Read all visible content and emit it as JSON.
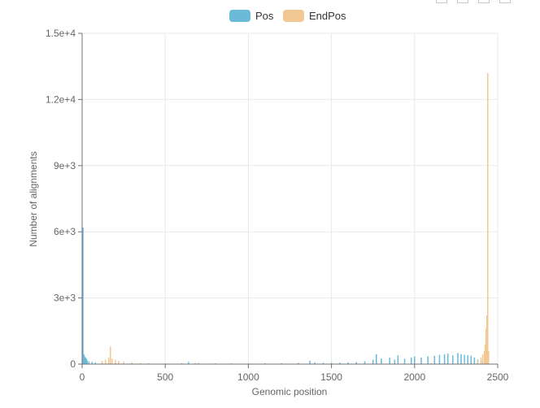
{
  "chart_data": {
    "type": "bar",
    "xlabel": "Genomic position",
    "ylabel": "Number of alignments",
    "xlim": [
      0,
      2500
    ],
    "ylim": [
      0,
      15000
    ],
    "x_ticks": [
      "0",
      "500",
      "1000",
      "1500",
      "2000",
      "2500"
    ],
    "y_ticks": [
      "0",
      "3e+3",
      "6e+3",
      "9e+3",
      "1.2e+4",
      "1.5e+4"
    ],
    "grid": true,
    "legend_position": "top-center",
    "series": [
      {
        "name": "Pos",
        "color": "#6bbad8",
        "x": [
          5,
          10,
          15,
          20,
          25,
          30,
          40,
          60,
          80,
          120,
          160,
          200,
          300,
          400,
          500,
          600,
          640,
          700,
          800,
          900,
          1000,
          1100,
          1200,
          1300,
          1370,
          1400,
          1450,
          1500,
          1550,
          1600,
          1650,
          1700,
          1750,
          1770,
          1800,
          1850,
          1880,
          1900,
          1940,
          1980,
          2000,
          2040,
          2080,
          2120,
          2150,
          2180,
          2200,
          2230,
          2260,
          2280,
          2300,
          2320,
          2340,
          2360,
          2380,
          2400,
          2420,
          2440
        ],
        "values": [
          6200,
          450,
          350,
          300,
          250,
          180,
          120,
          100,
          80,
          60,
          50,
          40,
          30,
          20,
          15,
          40,
          100,
          40,
          30,
          30,
          30,
          40,
          40,
          60,
          150,
          80,
          60,
          60,
          70,
          80,
          90,
          130,
          200,
          450,
          250,
          300,
          200,
          400,
          250,
          300,
          350,
          300,
          350,
          380,
          420,
          450,
          480,
          400,
          500,
          450,
          420,
          400,
          380,
          300,
          200,
          150,
          100,
          0
        ]
      },
      {
        "name": "EndPos",
        "color": "#f1c793",
        "x": [
          120,
          140,
          160,
          170,
          180,
          200,
          220,
          250,
          300,
          350,
          400,
          500,
          600,
          680,
          700,
          800,
          900,
          1000,
          1100,
          1200,
          1300,
          1400,
          1500,
          1700,
          1900,
          2100,
          2300,
          2380,
          2400,
          2410,
          2420,
          2425,
          2430,
          2435,
          2440,
          2445
        ],
        "values": [
          150,
          200,
          300,
          800,
          250,
          200,
          150,
          120,
          80,
          60,
          40,
          30,
          20,
          60,
          50,
          30,
          20,
          20,
          20,
          20,
          20,
          20,
          20,
          20,
          30,
          40,
          60,
          150,
          300,
          450,
          600,
          900,
          1600,
          2200,
          13200,
          600
        ]
      }
    ]
  }
}
